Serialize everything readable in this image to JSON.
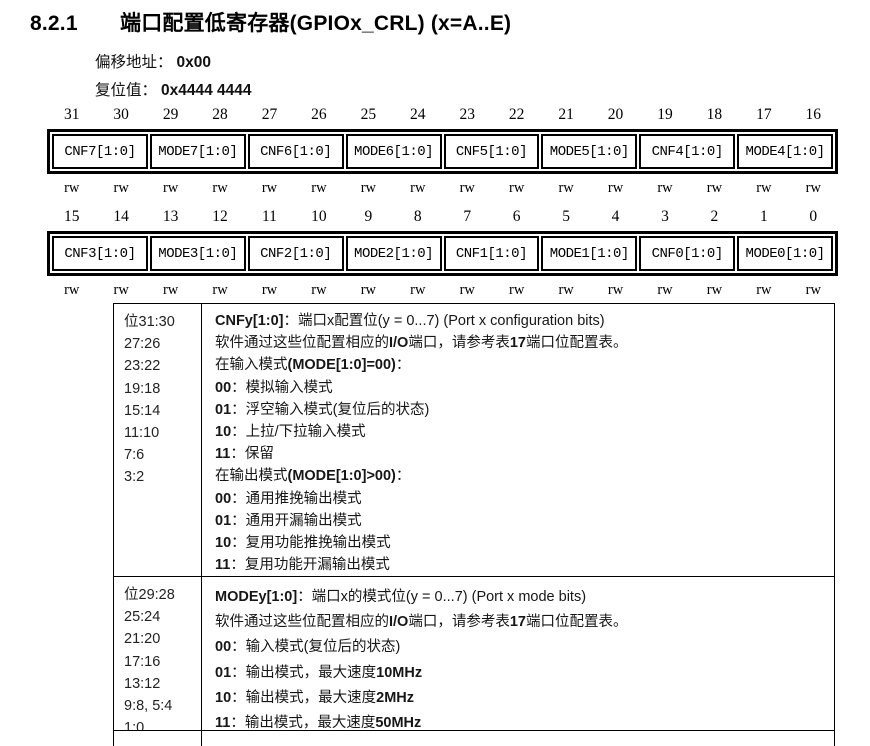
{
  "page": {
    "section_number": "8.2.1",
    "title": "端口配置低寄存器(GPIOx_CRL) (x=A..E)",
    "offset_label": "偏移地址：",
    "offset_value": "0x00",
    "reset_label": "复位值：",
    "reset_value": "0x4444 4444"
  },
  "colors": {
    "text": "#000000",
    "background": "#ffffff",
    "border": "#000000"
  },
  "register": {
    "groups": [
      {
        "bits": [
          "31",
          "30",
          "29",
          "28",
          "27",
          "26",
          "25",
          "24",
          "23",
          "22",
          "21",
          "20",
          "19",
          "18",
          "17",
          "16"
        ],
        "fields": [
          "CNF7[1:0]",
          "MODE7[1:0]",
          "CNF6[1:0]",
          "MODE6[1:0]",
          "CNF5[1:0]",
          "MODE5[1:0]",
          "CNF4[1:0]",
          "MODE4[1:0]"
        ],
        "access": [
          "rw",
          "rw",
          "rw",
          "rw",
          "rw",
          "rw",
          "rw",
          "rw",
          "rw",
          "rw",
          "rw",
          "rw",
          "rw",
          "rw",
          "rw",
          "rw"
        ]
      },
      {
        "bits": [
          "15",
          "14",
          "13",
          "12",
          "11",
          "10",
          "9",
          "8",
          "7",
          "6",
          "5",
          "4",
          "3",
          "2",
          "1",
          "0"
        ],
        "fields": [
          "CNF3[1:0]",
          "MODE3[1:0]",
          "CNF2[1:0]",
          "MODE2[1:0]",
          "CNF1[1:0]",
          "MODE1[1:0]",
          "CNF0[1:0]",
          "MODE0[1:0]"
        ],
        "access": [
          "rw",
          "rw",
          "rw",
          "rw",
          "rw",
          "rw",
          "rw",
          "rw",
          "rw",
          "rw",
          "rw",
          "rw",
          "rw",
          "rw",
          "rw",
          "rw"
        ]
      }
    ]
  },
  "description": {
    "rows": [
      {
        "bit_ranges": [
          "位31:30",
          "27:26",
          "23:22",
          "19:18",
          "15:14",
          "11:10",
          "7:6",
          "3:2"
        ],
        "lines": [
          [
            {
              "t": "CNFy[1:0]",
              "b": true
            },
            {
              "t": "：端口x配置位(y = 0...7) (Port x configuration bits)"
            }
          ],
          [
            {
              "t": "软件通过这些位配置相应的"
            },
            {
              "t": "I/O",
              "b": true
            },
            {
              "t": "端口，请参考表"
            },
            {
              "t": "17",
              "b": true
            },
            {
              "t": "端口位配置表。"
            }
          ],
          [
            {
              "t": "在输入模式"
            },
            {
              "t": "(MODE[1:0]=00)",
              "b": true
            },
            {
              "t": "："
            }
          ],
          [
            {
              "t": "00",
              "b": true
            },
            {
              "t": "：模拟输入模式"
            }
          ],
          [
            {
              "t": "01",
              "b": true
            },
            {
              "t": "：浮空输入模式(复位后的状态)"
            }
          ],
          [
            {
              "t": "10",
              "b": true
            },
            {
              "t": "：上拉/下拉输入模式"
            }
          ],
          [
            {
              "t": "11",
              "b": true
            },
            {
              "t": "：保留"
            }
          ],
          [
            {
              "t": "在输出模式"
            },
            {
              "t": "(MODE[1:0]>00)",
              "b": true
            },
            {
              "t": "："
            }
          ],
          [
            {
              "t": "00",
              "b": true
            },
            {
              "t": "：通用推挽输出模式"
            }
          ],
          [
            {
              "t": "01",
              "b": true
            },
            {
              "t": "：通用开漏输出模式"
            }
          ],
          [
            {
              "t": "10",
              "b": true
            },
            {
              "t": "：复用功能推挽输出模式"
            }
          ],
          [
            {
              "t": "11",
              "b": true
            },
            {
              "t": "：复用功能开漏输出模式"
            }
          ]
        ]
      },
      {
        "bit_ranges": [
          "位29:28",
          "25:24",
          "21:20",
          "17:16",
          "13:12",
          "9:8, 5:4",
          "1:0"
        ],
        "lines": [
          [
            {
              "t": "MODEy[1:0]",
              "b": true
            },
            {
              "t": "：端口x的模式位(y = 0...7) (Port x mode bits)"
            }
          ],
          [
            {
              "t": "软件通过这些位配置相应的"
            },
            {
              "t": "I/O",
              "b": true
            },
            {
              "t": "端口，请参考表"
            },
            {
              "t": "17",
              "b": true
            },
            {
              "t": "端口位配置表。"
            }
          ],
          [
            {
              "t": "00",
              "b": true
            },
            {
              "t": "：输入模式(复位后的状态)"
            }
          ],
          [
            {
              "t": "01",
              "b": true
            },
            {
              "t": "：输出模式，最大速度"
            },
            {
              "t": "10MHz",
              "b": true
            }
          ],
          [
            {
              "t": "10",
              "b": true
            },
            {
              "t": "：输出模式，最大速度"
            },
            {
              "t": "2MHz",
              "b": true
            }
          ],
          [
            {
              "t": "11",
              "b": true
            },
            {
              "t": "：输出模式，最大速度"
            },
            {
              "t": "50MHz",
              "b": true
            }
          ]
        ]
      }
    ]
  }
}
